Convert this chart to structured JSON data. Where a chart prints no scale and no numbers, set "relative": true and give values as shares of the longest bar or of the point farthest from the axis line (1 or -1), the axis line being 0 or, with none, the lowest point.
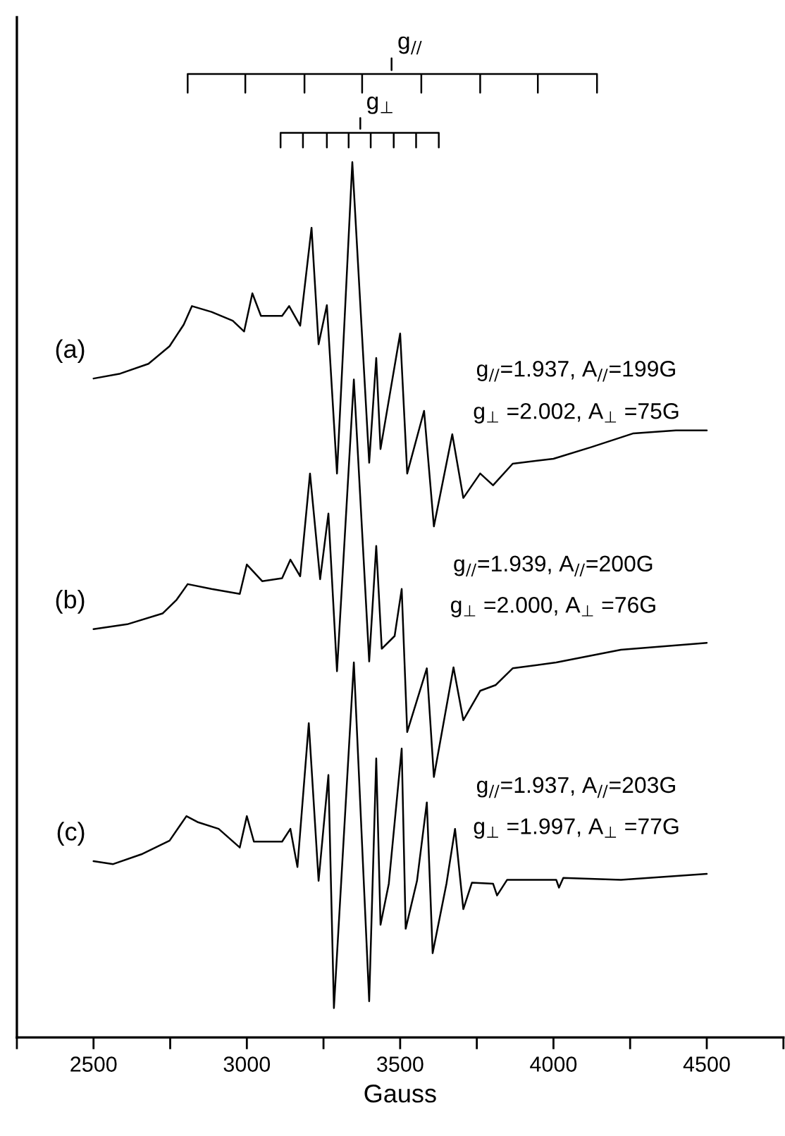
{
  "chart_data": {
    "type": "line",
    "relative": true,
    "xlabel": "Gauss",
    "xlim": [
      2250,
      4750
    ],
    "xticks": [
      {
        "value": 2250,
        "label": null
      },
      2500,
      {
        "value": 2750,
        "label": null
      },
      3000,
      {
        "value": 3250,
        "label": null
      },
      3500,
      {
        "value": 3750,
        "label": null
      },
      4000,
      {
        "value": 4250,
        "label": null
      },
      4500,
      {
        "value": 4750,
        "label": null
      }
    ],
    "tick_labels": "x",
    "annotations": [
      {
        "text": "g$_{//}$",
        "x": 3472,
        "y": 1.0
      },
      {
        "text": "g$_{⊥}$",
        "x": 3370,
        "y": 0.939
      },
      "g$_{//}$=1.937, A$_{//}$=199G",
      "g$_{⊥}$ =2.002, A$_{⊥}$ =75G",
      "g$_{//}$=1.939, A$_{//}$=200G",
      "g$_{⊥}$ =2.000, A$_{⊥}$ =76G",
      "g$_{//}$=1.937, A$_{//}$=203G",
      "g$_{⊥}$ =1.997, A$_{⊥}$ =77G"
    ],
    "series": [
      {
        "name": "(a)",
        "color": "#000000",
        "x": [
          2500,
          2587,
          2679,
          2748,
          2794,
          2821,
          2885,
          2954,
          2991,
          3018,
          3046,
          3115,
          3138,
          3174,
          3211,
          3234,
          3261,
          3294,
          3344,
          3399,
          3422,
          3436,
          3500,
          3523,
          3578,
          3610,
          3670,
          3706,
          3761,
          3803,
          3867,
          4000,
          4124,
          4261,
          4399,
          4500
        ],
        "values": [
          0.673,
          0.678,
          0.688,
          0.706,
          0.728,
          0.747,
          0.741,
          0.732,
          0.721,
          0.76,
          0.737,
          0.737,
          0.747,
          0.727,
          0.827,
          0.708,
          0.748,
          0.576,
          0.894,
          0.587,
          0.694,
          0.601,
          0.719,
          0.576,
          0.64,
          0.522,
          0.616,
          0.551,
          0.576,
          0.564,
          0.586,
          0.591,
          0.603,
          0.617,
          0.62,
          0.62
        ]
      },
      {
        "name": "(b)",
        "color": "#000000",
        "x": [
          2500,
          2610,
          2725,
          2771,
          2807,
          2885,
          2977,
          3000,
          3050,
          3115,
          3142,
          3174,
          3206,
          3239,
          3266,
          3294,
          3349,
          3399,
          3422,
          3440,
          3482,
          3505,
          3523,
          3587,
          3610,
          3674,
          3706,
          3761,
          3812,
          3867,
          4009,
          4220,
          4500
        ],
        "values": [
          0.417,
          0.422,
          0.433,
          0.447,
          0.463,
          0.458,
          0.453,
          0.483,
          0.466,
          0.469,
          0.488,
          0.471,
          0.576,
          0.468,
          0.535,
          0.374,
          0.672,
          0.384,
          0.502,
          0.397,
          0.41,
          0.458,
          0.312,
          0.377,
          0.266,
          0.378,
          0.324,
          0.354,
          0.36,
          0.377,
          0.383,
          0.396,
          0.403
        ]
      },
      {
        "name": "(c)",
        "color": "#000000",
        "x": [
          2500,
          2564,
          2656,
          2748,
          2803,
          2839,
          2908,
          2977,
          3000,
          3023,
          3115,
          3142,
          3165,
          3202,
          3234,
          3266,
          3284,
          3349,
          3399,
          3422,
          3436,
          3463,
          3505,
          3518,
          3555,
          3587,
          3606,
          3651,
          3679,
          3706,
          3734,
          3803,
          3816,
          3849,
          4009,
          4018,
          4032,
          4220,
          4500
        ],
        "values": [
          0.18,
          0.177,
          0.187,
          0.201,
          0.226,
          0.22,
          0.213,
          0.194,
          0.226,
          0.2,
          0.2,
          0.213,
          0.174,
          0.321,
          0.16,
          0.268,
          0.03,
          0.383,
          0.037,
          0.285,
          0.115,
          0.157,
          0.295,
          0.111,
          0.16,
          0.24,
          0.086,
          0.157,
          0.213,
          0.131,
          0.158,
          0.157,
          0.145,
          0.161,
          0.161,
          0.153,
          0.163,
          0.161,
          0.167
        ]
      },
      {
        "color": "#000000",
        "x": [
          2807,
          2807,
          2995,
          2995,
          2995,
          3188,
          3188,
          3188,
          3376,
          3376,
          3376,
          3569,
          3569,
          3569,
          3761,
          3761,
          3761,
          3949,
          3949,
          3949,
          4142,
          4142
        ],
        "values": [
          0.965,
          0.984,
          0.984,
          0.965,
          0.984,
          0.984,
          0.965,
          0.984,
          0.984,
          0.965,
          0.984,
          0.984,
          0.965,
          0.984,
          0.984,
          0.965,
          0.984,
          0.984,
          0.965,
          0.984,
          0.984,
          0.965
        ]
      },
      {
        "color": "#000000",
        "x": [
          3110,
          3110,
          3183,
          3183,
          3183,
          3261,
          3261,
          3261,
          3332,
          3332,
          3332,
          3404,
          3404,
          3404,
          3479,
          3479,
          3479,
          3552,
          3552,
          3552,
          3626,
          3626
        ],
        "values": [
          0.909,
          0.924,
          0.924,
          0.909,
          0.924,
          0.924,
          0.909,
          0.924,
          0.924,
          0.909,
          0.924,
          0.924,
          0.909,
          0.924,
          0.924,
          0.909,
          0.924,
          0.924,
          0.909,
          0.924,
          0.924,
          0.909
        ]
      },
      {
        "color": "#000000",
        "x": [
          3472,
          3472
        ],
        "values": [
          0.988,
          1.0
        ]
      },
      {
        "color": "#000000",
        "x": [
          3370,
          3370
        ],
        "values": [
          0.928,
          0.939
        ]
      }
    ]
  }
}
